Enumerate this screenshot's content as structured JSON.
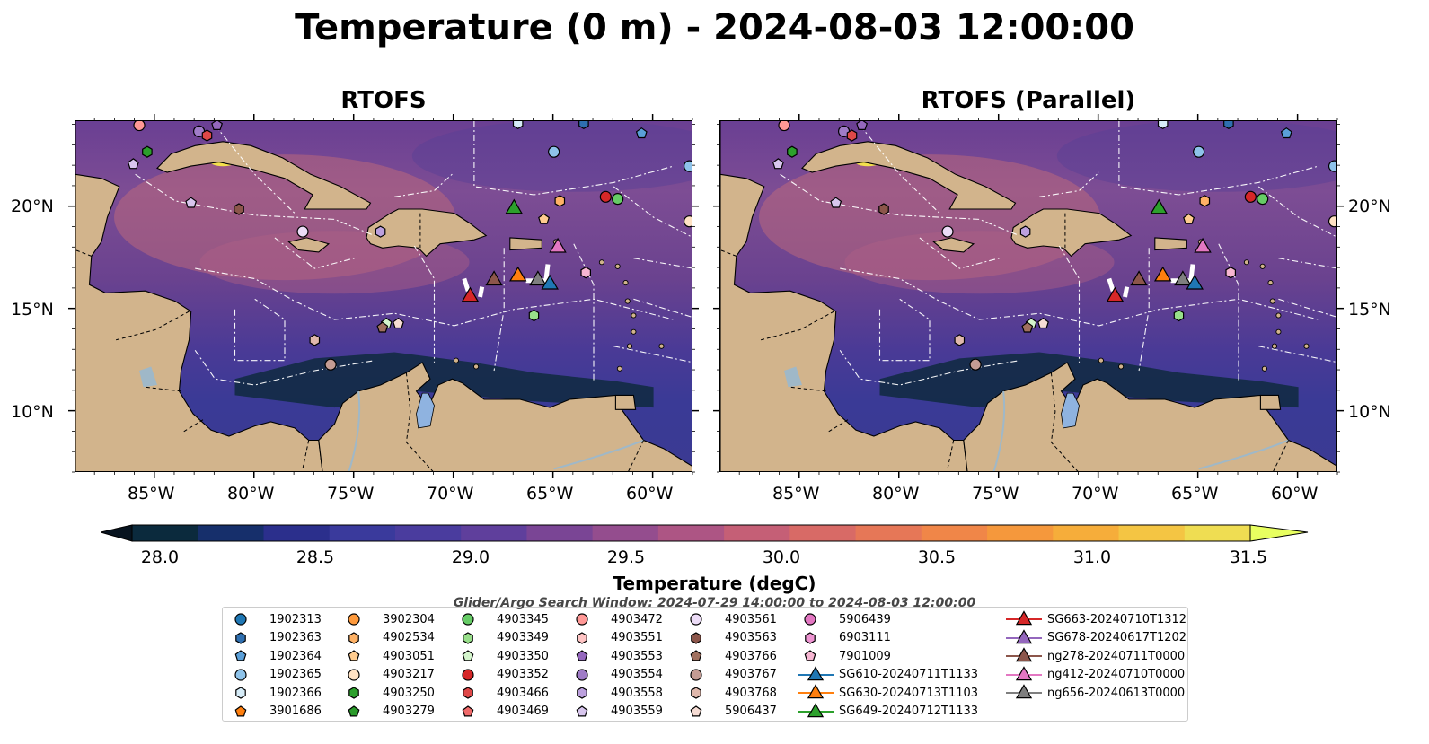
{
  "title": "Temperature (0 m) - 2024-08-03 12:00:00",
  "panels": [
    {
      "title": "RTOFS"
    },
    {
      "title": "RTOFS (Parallel)"
    }
  ],
  "lat_labels": [
    "20°N",
    "15°N",
    "10°N"
  ],
  "lon_labels": [
    "85°W",
    "80°W",
    "75°W",
    "70°W",
    "65°W",
    "60°W"
  ],
  "map_extent": {
    "lon": [
      -89,
      -58
    ],
    "lat": [
      7,
      24.2
    ]
  },
  "colors": {
    "land": "#d2b48c",
    "lake": "#8fb3e0",
    "river": "#9fb8c8",
    "grid": "#ffffff"
  },
  "colorbar": {
    "label": "Temperature (degC)",
    "ticks": [
      "28.0",
      "28.5",
      "29.0",
      "29.5",
      "30.0",
      "30.5",
      "31.0",
      "31.5"
    ],
    "range": [
      28.0,
      31.5
    ],
    "colormap": "thermal",
    "colors": [
      "#0b2a3d",
      "#162f6b",
      "#2b2f8c",
      "#3a3a9c",
      "#4a3c9e",
      "#5f3f9c",
      "#7a4595",
      "#944d8e",
      "#ad5584",
      "#c55f76",
      "#d86a66",
      "#e67757",
      "#f08648",
      "#f5983c",
      "#f6ad3a",
      "#f4c543",
      "#efdd52"
    ],
    "under_color": "#07131f",
    "over_color": "#e8ff60"
  },
  "search_window": "Glider/Argo Search Window: 2024-07-29 14:00:00 to 2024-08-03 12:00:00",
  "legend": {
    "columns": [
      [
        {
          "label": "1902313",
          "marker": "circle",
          "color": "#1f77b4"
        },
        {
          "label": "1902363",
          "marker": "hexagon",
          "color": "#2f6fb0"
        },
        {
          "label": "1902364",
          "marker": "pentagon",
          "color": "#5a9fd8"
        },
        {
          "label": "1902365",
          "marker": "circle",
          "color": "#8ec3ea"
        },
        {
          "label": "1902366",
          "marker": "hexagon",
          "color": "#d6ecf8"
        },
        {
          "label": "3901686",
          "marker": "pentagon",
          "color": "#ff7f0e"
        }
      ],
      [
        {
          "label": "3902304",
          "marker": "circle",
          "color": "#ff9a3c"
        },
        {
          "label": "4902534",
          "marker": "hexagon",
          "color": "#ffb266"
        },
        {
          "label": "4903051",
          "marker": "pentagon",
          "color": "#ffcc8f"
        },
        {
          "label": "4903217",
          "marker": "circle",
          "color": "#ffe2c4"
        },
        {
          "label": "4903250",
          "marker": "hexagon",
          "color": "#2ca02c"
        },
        {
          "label": "4903279",
          "marker": "pentagon",
          "color": "#2a9a2a"
        }
      ],
      [
        {
          "label": "4903345",
          "marker": "circle",
          "color": "#66cc66"
        },
        {
          "label": "4903349",
          "marker": "hexagon",
          "color": "#98df8a"
        },
        {
          "label": "4903350",
          "marker": "pentagon",
          "color": "#d4f5cc"
        },
        {
          "label": "4903352",
          "marker": "circle",
          "color": "#d62728"
        },
        {
          "label": "4903466",
          "marker": "hexagon",
          "color": "#e04848"
        },
        {
          "label": "4903469",
          "marker": "pentagon",
          "color": "#f06a6a"
        }
      ],
      [
        {
          "label": "4903472",
          "marker": "circle",
          "color": "#ff9896"
        },
        {
          "label": "4903551",
          "marker": "hexagon",
          "color": "#ffc4c4"
        },
        {
          "label": "4903553",
          "marker": "pentagon",
          "color": "#9467bd"
        },
        {
          "label": "4903554",
          "marker": "circle",
          "color": "#a07cc8"
        },
        {
          "label": "4903558",
          "marker": "hexagon",
          "color": "#bca0de"
        },
        {
          "label": "4903559",
          "marker": "pentagon",
          "color": "#d8c6ee"
        }
      ],
      [
        {
          "label": "4903561",
          "marker": "circle",
          "color": "#ecdcf7"
        },
        {
          "label": "4903563",
          "marker": "hexagon",
          "color": "#8c564b"
        },
        {
          "label": "4903766",
          "marker": "pentagon",
          "color": "#a0705f"
        },
        {
          "label": "4903767",
          "marker": "circle",
          "color": "#c49c94"
        },
        {
          "label": "4903768",
          "marker": "hexagon",
          "color": "#e0b8ac"
        },
        {
          "label": "5906437",
          "marker": "pentagon",
          "color": "#f6dcd4"
        }
      ],
      [
        {
          "label": "5906439",
          "marker": "circle",
          "color": "#e377c2"
        },
        {
          "label": "6903111",
          "marker": "hexagon",
          "color": "#ee94d2"
        },
        {
          "label": "7901009",
          "marker": "pentagon",
          "color": "#f7b6d2"
        },
        {
          "label": "SG610-20240711T1133",
          "marker": "triangle",
          "color": "#1f77b4"
        },
        {
          "label": "SG630-20240713T1103",
          "marker": "triangle",
          "color": "#ff7f0e"
        },
        {
          "label": "SG649-20240712T1133",
          "marker": "triangle",
          "color": "#2ca02c"
        }
      ],
      [
        {
          "label": "SG663-20240710T1312",
          "marker": "triangle",
          "color": "#d62728"
        },
        {
          "label": "SG678-20240617T1202",
          "marker": "triangle",
          "color": "#9467bd"
        },
        {
          "label": "ng278-20240711T0000",
          "marker": "triangle",
          "color": "#8c564b"
        },
        {
          "label": "ng412-20240710T0000",
          "marker": "triangle",
          "color": "#e377c2"
        },
        {
          "label": "ng656-20240613T0000",
          "marker": "triangle",
          "color": "#7f7f7f"
        }
      ]
    ]
  },
  "observations": [
    {
      "id": "1902363",
      "lon": -63.5,
      "lat": 24.1
    },
    {
      "id": "1902364",
      "lon": -60.6,
      "lat": 23.6
    },
    {
      "id": "1902365",
      "lon": -65.0,
      "lat": 22.7
    },
    {
      "id": "1902366",
      "lon": -66.8,
      "lat": 24.1
    },
    {
      "id": "4903468",
      "lon": -58.2,
      "lat": 22.0
    },
    {
      "id": "4903472",
      "lon": -85.8,
      "lat": 24.0
    },
    {
      "id": "4903553",
      "lon": -81.9,
      "lat": 24.0
    },
    {
      "id": "4903554",
      "lon": -82.8,
      "lat": 23.7
    },
    {
      "id": "4903466",
      "lon": -82.4,
      "lat": 23.5
    },
    {
      "id": "4903250",
      "lon": -85.4,
      "lat": 22.7
    },
    {
      "id": "4903559",
      "lon": -86.1,
      "lat": 22.1
    },
    {
      "id": "4903559b",
      "lon": -83.2,
      "lat": 20.2
    },
    {
      "id": "4903563",
      "lon": -80.8,
      "lat": 19.9
    },
    {
      "id": "4903561",
      "lon": -77.6,
      "lat": 18.8
    },
    {
      "id": "4903558",
      "lon": -73.7,
      "lat": 18.8
    },
    {
      "id": "3902304",
      "lon": -62.4,
      "lat": 20.5
    },
    {
      "id": "4903345",
      "lon": -61.8,
      "lat": 20.4
    },
    {
      "id": "4902534",
      "lon": -64.7,
      "lat": 20.3
    },
    {
      "id": "4903051",
      "lon": -65.5,
      "lat": 19.4
    },
    {
      "id": "4903217",
      "lon": -58.2,
      "lat": 19.3
    },
    {
      "id": "4903551",
      "lon": -63.4,
      "lat": 16.8
    },
    {
      "id": "4903349",
      "lon": -66.0,
      "lat": 14.7
    },
    {
      "id": "4903350",
      "lon": -73.4,
      "lat": 14.3
    },
    {
      "id": "4903768b",
      "lon": -72.8,
      "lat": 14.3
    },
    {
      "id": "4903563b",
      "lon": -73.6,
      "lat": 14.1
    },
    {
      "id": "4903768",
      "lon": -77.0,
      "lat": 13.5
    },
    {
      "id": "4903767",
      "lon": -76.2,
      "lat": 12.3
    }
  ],
  "gliders": [
    {
      "id": "SG649-20240712T1133",
      "lon": -67.0,
      "lat": 20.0
    },
    {
      "id": "ng412-20240710T0000",
      "lon": -64.8,
      "lat": 18.1
    },
    {
      "id": "ng278-20240711T0000",
      "lon": -68.0,
      "lat": 16.5
    },
    {
      "id": "SG630-20240713T1103",
      "lon": -66.8,
      "lat": 16.7
    },
    {
      "id": "ng656-20240613T0000",
      "lon": -65.8,
      "lat": 16.5
    },
    {
      "id": "SG610-20240711T1133",
      "lon": -65.2,
      "lat": 16.3
    },
    {
      "id": "SG663-20240710T1312",
      "lon": -69.2,
      "lat": 15.7
    }
  ]
}
